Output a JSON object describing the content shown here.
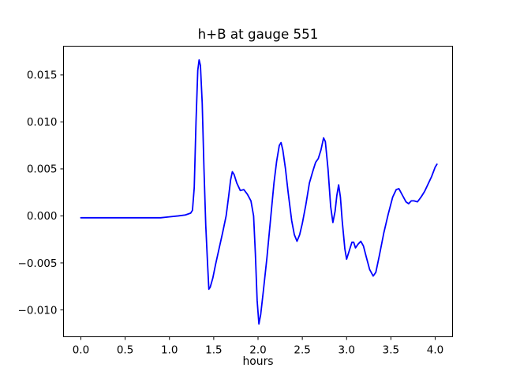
{
  "figure": {
    "background": "#ffffff",
    "text_color": "#000000"
  },
  "chart_data": {
    "type": "line",
    "title": "h+B at gauge 551",
    "xlabel": "hours",
    "ylabel": "",
    "grid": false,
    "legend": null,
    "line_color": "#0000ff",
    "axis_color": "#000000",
    "xlim": [
      -0.2,
      4.2
    ],
    "ylim": [
      -0.0129,
      0.0181
    ],
    "xticks": [
      0.0,
      0.5,
      1.0,
      1.5,
      2.0,
      2.5,
      3.0,
      3.5,
      4.0
    ],
    "xtick_labels": [
      "0.0",
      "0.5",
      "1.0",
      "1.5",
      "2.0",
      "2.5",
      "3.0",
      "3.5",
      "4.0"
    ],
    "yticks": [
      -0.01,
      -0.005,
      0.0,
      0.005,
      0.01,
      0.015
    ],
    "ytick_labels": [
      "−0.010",
      "−0.005",
      "0.000",
      "0.005",
      "0.010",
      "0.015"
    ],
    "series": [
      {
        "name": "h+B",
        "x": [
          0.0,
          0.15,
          0.3,
          0.45,
          0.6,
          0.75,
          0.9,
          1.0,
          1.1,
          1.18,
          1.24,
          1.26,
          1.28,
          1.3,
          1.32,
          1.335,
          1.35,
          1.37,
          1.39,
          1.41,
          1.43,
          1.445,
          1.46,
          1.49,
          1.52,
          1.56,
          1.6,
          1.64,
          1.67,
          1.69,
          1.71,
          1.73,
          1.76,
          1.8,
          1.84,
          1.88,
          1.92,
          1.95,
          1.97,
          1.99,
          2.01,
          2.03,
          2.06,
          2.1,
          2.14,
          2.18,
          2.21,
          2.24,
          2.26,
          2.28,
          2.31,
          2.34,
          2.38,
          2.41,
          2.44,
          2.47,
          2.5,
          2.54,
          2.58,
          2.62,
          2.65,
          2.68,
          2.71,
          2.74,
          2.76,
          2.79,
          2.82,
          2.845,
          2.87,
          2.89,
          2.91,
          2.93,
          2.95,
          2.98,
          3.0,
          3.03,
          3.06,
          3.08,
          3.1,
          3.13,
          3.16,
          3.19,
          3.22,
          3.26,
          3.3,
          3.33,
          3.37,
          3.42,
          3.47,
          3.52,
          3.56,
          3.59,
          3.63,
          3.67,
          3.7,
          3.73,
          3.76,
          3.8,
          3.84,
          3.88,
          3.92,
          3.96,
          4.0,
          4.02
        ],
        "y": [
          -0.0002,
          -0.0002,
          -0.0002,
          -0.0002,
          -0.0002,
          -0.0002,
          -0.0002,
          -0.0001,
          0.0,
          0.0001,
          0.0003,
          0.0006,
          0.003,
          0.01,
          0.0155,
          0.0166,
          0.016,
          0.012,
          0.005,
          -0.001,
          -0.005,
          -0.0078,
          -0.0076,
          -0.0066,
          -0.0052,
          -0.0035,
          -0.0018,
          0.0,
          0.0022,
          0.0038,
          0.0047,
          0.0044,
          0.0035,
          0.0027,
          0.0028,
          0.0023,
          0.0016,
          0.0,
          -0.004,
          -0.009,
          -0.0115,
          -0.0105,
          -0.008,
          -0.0045,
          -0.0005,
          0.0035,
          0.0058,
          0.0075,
          0.0078,
          0.007,
          0.005,
          0.0025,
          -0.0005,
          -0.002,
          -0.0027,
          -0.002,
          -0.0008,
          0.0012,
          0.0035,
          0.0048,
          0.0057,
          0.0061,
          0.007,
          0.0083,
          0.0079,
          0.005,
          0.001,
          -0.0007,
          0.0005,
          0.0022,
          0.0033,
          0.002,
          -0.0005,
          -0.0035,
          -0.0046,
          -0.0037,
          -0.0028,
          -0.0028,
          -0.0034,
          -0.003,
          -0.0027,
          -0.0032,
          -0.0043,
          -0.0057,
          -0.0064,
          -0.006,
          -0.0042,
          -0.0018,
          0.0002,
          0.002,
          0.0028,
          0.0029,
          0.0022,
          0.0015,
          0.0013,
          0.0016,
          0.0016,
          0.0015,
          0.002,
          0.0026,
          0.0034,
          0.0042,
          0.0052,
          0.0055
        ]
      }
    ]
  }
}
